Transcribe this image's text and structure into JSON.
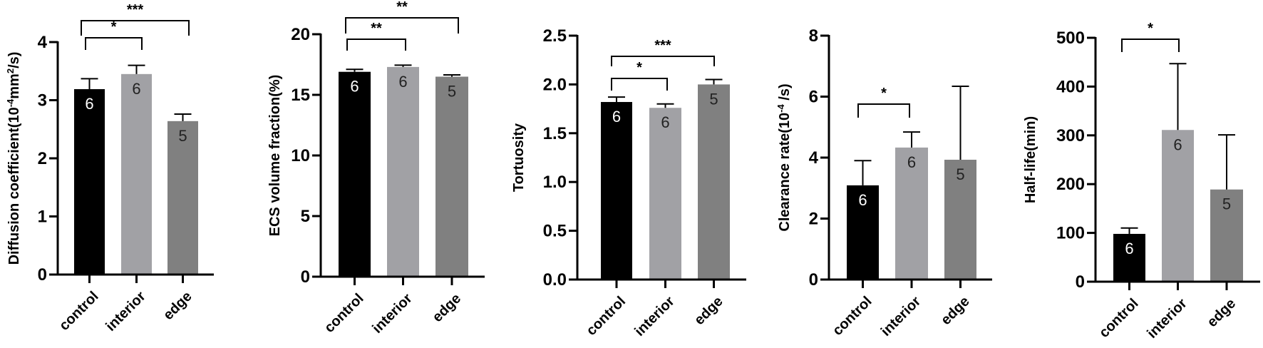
{
  "figure": {
    "panel_count": 5,
    "bar_colors": {
      "control": "#000000",
      "interior": "#A1A1A5",
      "edge": "#808080"
    },
    "n_label_colors": {
      "control": "#ffffff",
      "interior": "#222222",
      "edge": "#222222"
    }
  },
  "chart_data": [
    {
      "type": "bar",
      "title": "",
      "xlabel": "",
      "ylabel": "Diffusion coefficient(10⁻⁴mm²/s)",
      "ylabel_parts": [
        "Diffusion coefficient(10",
        "-4",
        "mm",
        "2",
        "/s)"
      ],
      "categories": [
        "control",
        "interior",
        "edge"
      ],
      "values": [
        3.19,
        3.45,
        2.64
      ],
      "error_upper": [
        3.37,
        3.6,
        2.76
      ],
      "n": [
        "6",
        "6",
        "5"
      ],
      "ylim": [
        0,
        4
      ],
      "yticks": [
        0,
        1,
        2,
        3,
        4
      ],
      "ytick_labels": [
        "0",
        "1",
        "2",
        "3",
        "4"
      ],
      "grid": false,
      "significance": [
        {
          "from": "control",
          "to": "edge",
          "label": "***"
        },
        {
          "from": "control",
          "to": "interior",
          "label": "*"
        }
      ]
    },
    {
      "type": "bar",
      "title": "",
      "xlabel": "",
      "ylabel": "ECS volume fraction(%)",
      "categories": [
        "control",
        "interior",
        "edge"
      ],
      "values": [
        16.9,
        17.3,
        16.5
      ],
      "error_upper": [
        17.1,
        17.45,
        16.65
      ],
      "n": [
        "6",
        "6",
        "5"
      ],
      "ylim": [
        0,
        20
      ],
      "yticks": [
        0,
        5,
        10,
        15,
        20
      ],
      "ytick_labels": [
        "0",
        "5",
        "10",
        "15",
        "20"
      ],
      "grid": false,
      "significance": [
        {
          "from": "control",
          "to": "edge",
          "label": "**"
        },
        {
          "from": "control",
          "to": "interior",
          "label": "**"
        }
      ]
    },
    {
      "type": "bar",
      "title": "",
      "xlabel": "",
      "ylabel": "Tortuosity",
      "categories": [
        "control",
        "interior",
        "edge"
      ],
      "values": [
        1.82,
        1.76,
        2.0
      ],
      "error_upper": [
        1.87,
        1.8,
        2.05
      ],
      "n": [
        "6",
        "6",
        "5"
      ],
      "ylim": [
        0,
        2.5
      ],
      "yticks": [
        0,
        0.5,
        1.0,
        1.5,
        2.0,
        2.5
      ],
      "ytick_labels": [
        "0.0",
        "0.5",
        "1.0",
        "1.5",
        "2.0",
        "2.5"
      ],
      "grid": false,
      "significance": [
        {
          "from": "control",
          "to": "edge",
          "label": "***"
        },
        {
          "from": "control",
          "to": "interior",
          "label": "*"
        }
      ]
    },
    {
      "type": "bar",
      "title": "",
      "xlabel": "",
      "ylabel": "Clearance rate(10⁻⁴ /s)",
      "ylabel_parts": [
        "Clearance rate(10",
        "-4",
        " /s)"
      ],
      "categories": [
        "control",
        "interior",
        "edge"
      ],
      "values": [
        3.09,
        4.33,
        3.93
      ],
      "error_upper": [
        3.9,
        4.84,
        6.34
      ],
      "n": [
        "6",
        "6",
        "5"
      ],
      "ylim": [
        0,
        8
      ],
      "yticks": [
        0,
        2,
        4,
        6,
        8
      ],
      "ytick_labels": [
        "0",
        "2",
        "4",
        "6",
        "8"
      ],
      "grid": false,
      "significance": [
        {
          "from": "control",
          "to": "interior",
          "label": "*"
        }
      ]
    },
    {
      "type": "bar",
      "title": "",
      "xlabel": "",
      "ylabel": "Half-life(min)",
      "categories": [
        "control",
        "interior",
        "edge"
      ],
      "values": [
        98,
        311,
        189
      ],
      "error_upper": [
        110,
        447,
        301
      ],
      "n": [
        "6",
        "6",
        "5"
      ],
      "ylim": [
        0,
        500
      ],
      "yticks": [
        0,
        100,
        200,
        300,
        400,
        500
      ],
      "ytick_labels": [
        "0",
        "100",
        "200",
        "300",
        "400",
        "500"
      ],
      "grid": false,
      "significance": [
        {
          "from": "control",
          "to": "interior",
          "label": "*"
        }
      ]
    }
  ]
}
